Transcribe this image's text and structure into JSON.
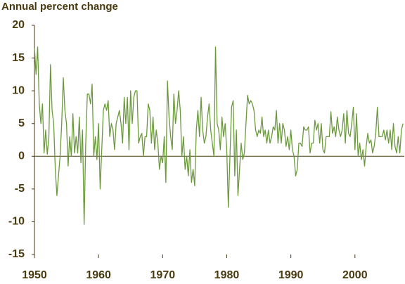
{
  "chart_data": {
    "type": "line",
    "title": "Annual percent change",
    "x": [
      1950,
      1950.25,
      1950.5,
      1950.75,
      1951,
      1951.25,
      1951.5,
      1951.75,
      1952,
      1952.25,
      1952.5,
      1952.75,
      1953,
      1953.25,
      1953.5,
      1953.75,
      1954,
      1954.25,
      1954.5,
      1954.75,
      1955,
      1955.25,
      1955.5,
      1955.75,
      1956,
      1956.25,
      1956.5,
      1956.75,
      1957,
      1957.25,
      1957.5,
      1957.75,
      1958,
      1958.25,
      1958.5,
      1958.75,
      1959,
      1959.25,
      1959.5,
      1959.75,
      1960,
      1960.25,
      1960.5,
      1960.75,
      1961,
      1961.25,
      1961.5,
      1961.75,
      1962,
      1962.25,
      1962.5,
      1962.75,
      1963,
      1963.25,
      1963.5,
      1963.75,
      1964,
      1964.25,
      1964.5,
      1964.75,
      1965,
      1965.25,
      1965.5,
      1965.75,
      1966,
      1966.25,
      1966.5,
      1966.75,
      1967,
      1967.25,
      1967.5,
      1967.75,
      1968,
      1968.25,
      1968.5,
      1968.75,
      1969,
      1969.25,
      1969.5,
      1969.75,
      1970,
      1970.25,
      1970.5,
      1970.75,
      1971,
      1971.25,
      1971.5,
      1971.75,
      1972,
      1972.25,
      1972.5,
      1972.75,
      1973,
      1973.25,
      1973.5,
      1973.75,
      1974,
      1974.25,
      1974.5,
      1974.75,
      1975,
      1975.25,
      1975.5,
      1975.75,
      1976,
      1976.25,
      1976.5,
      1976.75,
      1977,
      1977.25,
      1977.5,
      1977.75,
      1978,
      1978.25,
      1978.5,
      1978.75,
      1979,
      1979.25,
      1979.5,
      1979.75,
      1980,
      1980.25,
      1980.5,
      1980.75,
      1981,
      1981.25,
      1981.5,
      1981.75,
      1982,
      1982.25,
      1982.5,
      1982.75,
      1983,
      1983.25,
      1983.5,
      1983.75,
      1984,
      1984.25,
      1984.5,
      1984.75,
      1985,
      1985.25,
      1985.5,
      1985.75,
      1986,
      1986.25,
      1986.5,
      1986.75,
      1987,
      1987.25,
      1987.5,
      1987.75,
      1988,
      1988.25,
      1988.5,
      1988.75,
      1989,
      1989.25,
      1989.5,
      1989.75,
      1990,
      1990.25,
      1990.5,
      1990.75,
      1991,
      1991.25,
      1991.5,
      1991.75,
      1992,
      1992.25,
      1992.5,
      1992.75,
      1993,
      1993.25,
      1993.5,
      1993.75,
      1994,
      1994.25,
      1994.5,
      1994.75,
      1995,
      1995.25,
      1995.5,
      1995.75,
      1996,
      1996.25,
      1996.5,
      1996.75,
      1997,
      1997.25,
      1997.5,
      1997.75,
      1998,
      1998.25,
      1998.5,
      1998.75,
      1999,
      1999.25,
      1999.5,
      1999.75,
      2000,
      2000.25,
      2000.5,
      2000.75,
      2001,
      2001.25,
      2001.5,
      2001.75,
      2002,
      2002.25,
      2002.5,
      2002.75,
      2003,
      2003.25,
      2003.5,
      2003.75,
      2004,
      2004.25,
      2004.5,
      2004.75,
      2005,
      2005.25,
      2005.5,
      2005.75,
      2006,
      2006.25,
      2006.5,
      2006.75,
      2007,
      2007.25,
      2007.5
    ],
    "series": [
      {
        "color": "#6b9a3c",
        "values": [
          16.5,
          12.5,
          16.7,
          8,
          5,
          8,
          0.5,
          4,
          0.3,
          3,
          14,
          7,
          5,
          -2,
          -6,
          -3,
          0,
          5,
          12,
          7,
          5,
          -1.5,
          3,
          0,
          6.5,
          0.5,
          3,
          0.5,
          6,
          -1,
          4,
          -10.4,
          2,
          9.5,
          9.5,
          8,
          11,
          0,
          3,
          -0.5,
          5,
          -5,
          1,
          7,
          8,
          7,
          8.5,
          3,
          5,
          4,
          1,
          5,
          6,
          7,
          5,
          2,
          9,
          5,
          9,
          1,
          10,
          5,
          9,
          10,
          10,
          2,
          3,
          3.5,
          0,
          3,
          3,
          8,
          7,
          2,
          6,
          1,
          4,
          2,
          -2,
          0,
          -1,
          3,
          -4,
          11.5,
          6,
          3,
          1,
          9.5,
          5,
          7,
          10,
          7,
          0,
          3,
          -2,
          0,
          -3,
          1,
          -4,
          -2,
          -4.5,
          4,
          7,
          3,
          9,
          4,
          2,
          3,
          6,
          8,
          4,
          2,
          0,
          16.7,
          5,
          4,
          1,
          6,
          3,
          5,
          1,
          -7.8,
          0,
          7.5,
          8.5,
          -3,
          4,
          -6,
          -2,
          2,
          -0.5,
          0.5,
          5,
          9.3,
          8,
          8.5,
          8,
          7,
          4,
          3,
          4,
          3.5,
          6,
          3,
          4,
          2,
          4,
          2,
          3,
          4.5,
          4,
          7,
          2,
          5,
          2,
          5,
          4,
          1.5,
          3,
          1,
          4,
          1,
          0,
          -3,
          -2,
          2,
          2,
          1.5,
          4.5,
          4,
          4,
          4.5,
          0.5,
          2,
          2,
          5.5,
          4,
          5,
          2,
          5,
          1,
          0.5,
          3,
          3,
          3,
          6.8,
          3.5,
          4.5,
          3,
          6,
          4,
          3,
          4,
          6.5,
          2,
          7,
          3.5,
          3,
          5,
          7.5,
          1,
          6.5,
          0,
          2,
          -0.5,
          1,
          -1.5,
          1.5,
          3.5,
          2,
          2.5,
          0.5,
          1.5,
          3.5,
          7.5,
          3,
          3,
          3,
          4,
          2.5,
          4,
          2,
          4,
          1,
          5,
          1.5,
          0.5,
          3,
          0.5,
          4,
          5
        ]
      }
    ],
    "xlim": [
      1950,
      2007.7
    ],
    "xticks": [
      1950,
      1960,
      1970,
      1980,
      1990,
      2000
    ],
    "ylim": [
      -15,
      20
    ],
    "yticks": [
      -15,
      -10,
      -5,
      0,
      5,
      10,
      15,
      20
    ]
  }
}
